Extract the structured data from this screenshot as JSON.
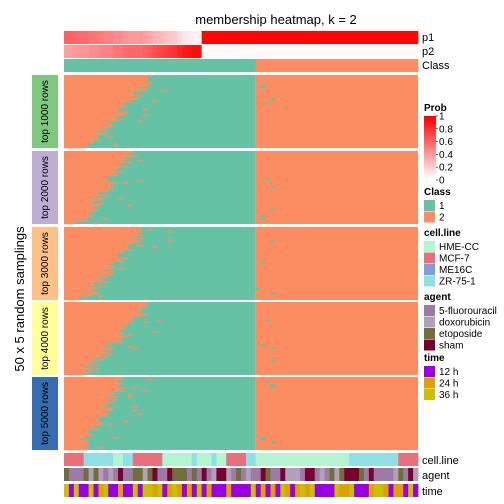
{
  "chart_data": {
    "type": "heatmap",
    "title": "membership heatmap, k = 2",
    "ylabel": "50 x 5 random samplings",
    "n_samples": 72,
    "sample_order_note": "",
    "annotations_top": [
      {
        "name": "p1",
        "values": [
          0.62,
          0.62,
          0.6,
          0.58,
          0.58,
          0.55,
          0.55,
          0.52,
          0.5,
          0.5,
          0.45,
          0.45,
          0.42,
          0.4,
          0.4,
          0.4,
          0.38,
          0.35,
          0.3,
          0.28,
          0.25,
          0.22,
          0.2,
          0.15,
          0.1,
          0.08,
          0.05,
          0.05,
          0.98,
          0.98,
          0.98,
          0.98,
          0.98,
          0.98,
          0.98,
          0.98,
          0.98,
          0.98,
          0.98,
          0.98,
          0.98,
          0.98,
          0.98,
          0.98,
          0.98,
          0.98,
          0.98,
          0.98,
          0.98,
          0.98,
          0.98,
          0.98,
          0.98,
          0.98,
          0.98,
          0.98,
          0.98,
          0.98,
          0.98,
          0.98,
          0.98,
          0.98,
          0.98,
          0.98,
          0.98,
          0.98,
          0.98,
          0.98,
          0.98,
          0.98,
          0.98,
          0.98
        ],
        "split_note": ""
      },
      {
        "name": "p2",
        "values": [
          0.38,
          0.38,
          0.4,
          0.42,
          0.42,
          0.45,
          0.45,
          0.48,
          0.5,
          0.5,
          0.55,
          0.55,
          0.58,
          0.6,
          0.6,
          0.6,
          0.62,
          0.65,
          0.7,
          0.72,
          0.75,
          0.78,
          0.8,
          0.85,
          0.9,
          0.92,
          0.95,
          0.95,
          0.02,
          0.02,
          0.02,
          0.02,
          0.02,
          0.02,
          0.02,
          0.02,
          0.02,
          0.02,
          0.02,
          0.02,
          0.02,
          0.02,
          0.02,
          0.02,
          0.02,
          0.02,
          0.02,
          0.02,
          0.02,
          0.02,
          0.02,
          0.02,
          0.02,
          0.02,
          0.02,
          0.02,
          0.02,
          0.02,
          0.02,
          0.02,
          0.02,
          0.02,
          0.02,
          0.02,
          0.02,
          0.02,
          0.02,
          0.02,
          0.02,
          0.02,
          0.02,
          0.02
        ]
      },
      {
        "name": "Class"
      }
    ],
    "row_groups": [
      {
        "label": "top 1000 rows",
        "color": "#7fc97f",
        "boundary_seed": 11,
        "max_extent": 0.26
      },
      {
        "label": "top 2000 rows",
        "color": "#beaed4",
        "boundary_seed": 23,
        "max_extent": 0.2
      },
      {
        "label": "top 3000 rows",
        "color": "#fdc086",
        "boundary_seed": 37,
        "max_extent": 0.23
      },
      {
        "label": "top 4000 rows",
        "color": "#ffff99",
        "boundary_seed": 51,
        "max_extent": 0.24
      },
      {
        "label": "top 5000 rows",
        "color": "#386cb0",
        "boundary_seed": 67,
        "max_extent": 0.18
      }
    ],
    "annotations_bottom": [
      {
        "name": "cell.line"
      },
      {
        "name": "agent"
      },
      {
        "name": "time"
      }
    ],
    "legends": {
      "prob": {
        "title": "Prob",
        "ticks": [
          "1",
          "0.8",
          "0.6",
          "0.4",
          "0.2",
          "0"
        ],
        "low_color": "#ffffff",
        "high_color": "#ff0000"
      },
      "class": {
        "title": "Class",
        "items": [
          {
            "label": "1",
            "color": "#66c2a5"
          },
          {
            "label": "2",
            "color": "#fc8d62"
          }
        ]
      },
      "cell_line": {
        "title": "cell.line",
        "items": [
          {
            "label": "HME-CC",
            "color": "#b3f5d0"
          },
          {
            "label": "MCF-7",
            "color": "#e8707a"
          },
          {
            "label": "ME16C",
            "color": "#7f9ce0"
          },
          {
            "label": "ZR-75-1",
            "color": "#8fe0e6"
          }
        ]
      },
      "agent": {
        "title": "agent",
        "items": [
          {
            "label": "5-fluorouracil",
            "color": "#a07aa6"
          },
          {
            "label": "doxorubicin",
            "color": "#b0a0b8"
          },
          {
            "label": "etoposide",
            "color": "#6f6f3a"
          },
          {
            "label": "sham",
            "color": "#7a0030"
          }
        ]
      },
      "time": {
        "title": "time",
        "items": [
          {
            "label": "12 h",
            "color": "#9b00e0"
          },
          {
            "label": "24 h",
            "color": "#e0a000"
          },
          {
            "label": "36 h",
            "color": "#c8c000"
          }
        ]
      }
    },
    "class_split_fraction": 0.545
  }
}
